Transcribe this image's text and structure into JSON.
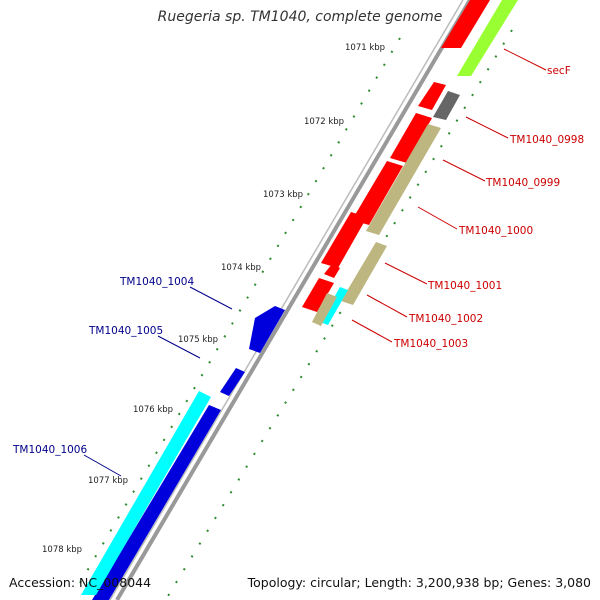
{
  "title": "Ruegeria sp. TM1040, complete genome",
  "accession": "Accession: NC_008044",
  "topology": "Topology: circular; Length: 3,200,938 bp; Genes: 3,080",
  "colors": {
    "backbone": "#999999",
    "tick": "#2e8b2e",
    "forward_label": "#cc0000",
    "reverse_label": "#00008b"
  },
  "ticks": [
    "1071 kbp",
    "1072 kbp",
    "1073 kbp",
    "1074 kbp",
    "1075 kbp",
    "1076 kbp",
    "1077 kbp",
    "1078 kbp"
  ],
  "forward_labels": [
    "secF",
    "TM1040_0998",
    "TM1040_0999",
    "TM1040_1000",
    "TM1040_1001",
    "TM1040_1002",
    "TM1040_1003"
  ],
  "reverse_labels": [
    "TM1040_1004",
    "TM1040_1005",
    "TM1040_1006"
  ]
}
